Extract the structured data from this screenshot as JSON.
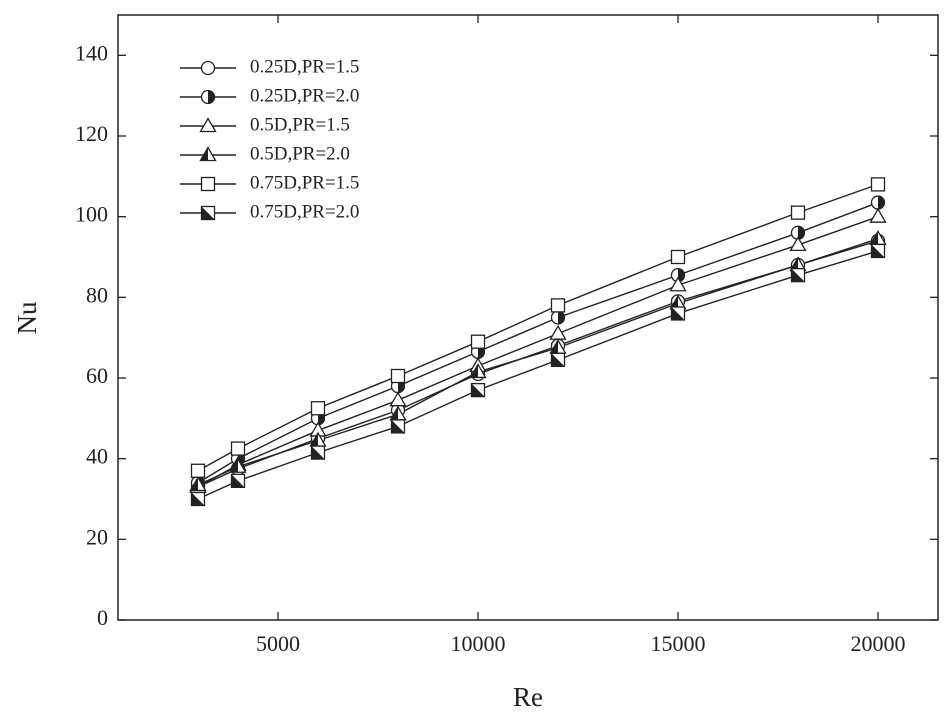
{
  "chart_data": {
    "type": "line",
    "x_label": "Re",
    "y_label": "Nu",
    "x": [
      3000,
      4000,
      6000,
      8000,
      10000,
      12000,
      15000,
      18000,
      20000
    ],
    "series": [
      {
        "name": "0.25D,PR=1.5",
        "color": "#222222",
        "marker": "circle",
        "values": [
          33,
          37.5,
          45,
          52,
          61,
          68,
          79,
          88,
          94
        ]
      },
      {
        "name": "0.25D,PR=2.0",
        "color": "#222222",
        "marker": "circle-half",
        "values": [
          34,
          40,
          50,
          58,
          66.5,
          75,
          85.5,
          96,
          103.5
        ]
      },
      {
        "name": "0.5D,PR=1.5",
        "color": "#222222",
        "marker": "triangle",
        "values": [
          33,
          38.5,
          47,
          54.5,
          63,
          71,
          83,
          93,
          100
        ]
      },
      {
        "name": "0.5D,PR=2.0",
        "color": "#222222",
        "marker": "triangle-half",
        "values": [
          33.5,
          38,
          44.5,
          51,
          61.5,
          67.5,
          78.5,
          88,
          94.5
        ]
      },
      {
        "name": "0.75D,PR=1.5",
        "color": "#222222",
        "marker": "square",
        "values": [
          37,
          42.5,
          52.5,
          60.5,
          69,
          78,
          90,
          101,
          108
        ]
      },
      {
        "name": "0.75D,PR=2.0",
        "color": "#222222",
        "marker": "square-half",
        "values": [
          30,
          34.5,
          41.5,
          48,
          57,
          64.5,
          76,
          85.5,
          91.5
        ]
      }
    ],
    "xlim": [
      1000,
      21500
    ],
    "ylim": [
      0,
      150
    ],
    "xticks": [
      5000,
      10000,
      15000,
      20000
    ],
    "yticks": [
      0,
      20,
      40,
      60,
      80,
      100,
      120,
      140
    ],
    "legend": "upper-left"
  }
}
